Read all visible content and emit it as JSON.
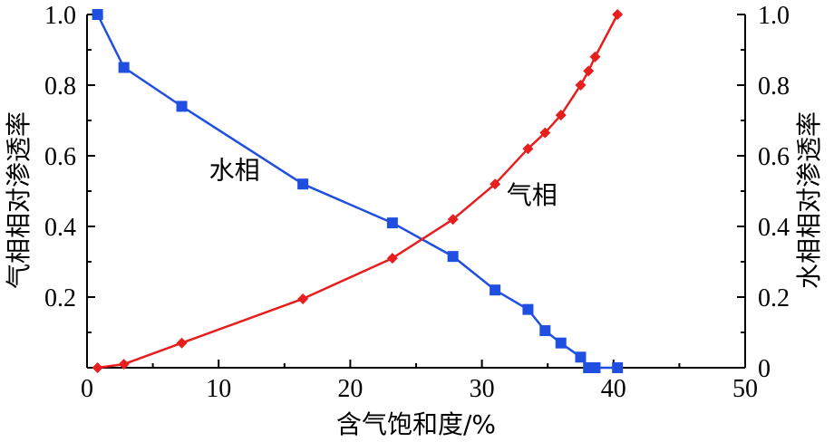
{
  "chart_data": {
    "type": "line",
    "xlabel": "含气饱和度/%",
    "ylabel_left": "气相相对渗透率",
    "ylabel_right": "水相相对渗透率",
    "xlim": [
      0,
      50
    ],
    "ylim_left": [
      0,
      1.0
    ],
    "ylim_right": [
      0,
      1.0
    ],
    "x_ticks": [
      0,
      10,
      20,
      30,
      40,
      50
    ],
    "x_tick_labels": [
      "0",
      "10",
      "20",
      "30",
      "40",
      "50"
    ],
    "y_left_ticks": [
      0.2,
      0.4,
      0.6,
      0.8,
      1.0
    ],
    "y_left_tick_labels": [
      "0.2",
      "0.4",
      "0.6",
      "0.8",
      "1.0"
    ],
    "y_right_ticks": [
      0,
      0.2,
      0.4,
      0.6,
      0.8,
      1.0
    ],
    "y_right_tick_labels": [
      "0",
      "0.2",
      "0.4",
      "0.6",
      "0.8",
      "1.0"
    ],
    "x_tick_minor": 5,
    "y_tick_minor": 0.1,
    "grid": false,
    "series": [
      {
        "name": "水相",
        "axis": "right",
        "color": "#1f4fe0",
        "marker": "square",
        "x": [
          0.8,
          2.8,
          7.2,
          16.4,
          23.2,
          27.8,
          31.0,
          33.5,
          34.8,
          36.0,
          37.5,
          38.1,
          38.6,
          40.3
        ],
        "y": [
          1.0,
          0.85,
          0.74,
          0.52,
          0.41,
          0.315,
          0.22,
          0.165,
          0.105,
          0.07,
          0.03,
          0.0,
          0.0,
          0.0
        ]
      },
      {
        "name": "气相",
        "axis": "left",
        "color": "#e61e1e",
        "marker": "diamond",
        "x": [
          0.8,
          2.8,
          7.2,
          16.4,
          23.2,
          27.8,
          31.0,
          33.5,
          34.8,
          36.0,
          37.5,
          38.1,
          38.6,
          40.3
        ],
        "y": [
          0.0,
          0.01,
          0.07,
          0.195,
          0.31,
          0.42,
          0.52,
          0.62,
          0.665,
          0.715,
          0.8,
          0.84,
          0.88,
          1.0
        ]
      }
    ],
    "annotations": [
      {
        "text": "水相",
        "x": 11.2,
        "y": 0.56
      },
      {
        "text": "气相",
        "x": 33.8,
        "y": 0.49
      }
    ]
  }
}
